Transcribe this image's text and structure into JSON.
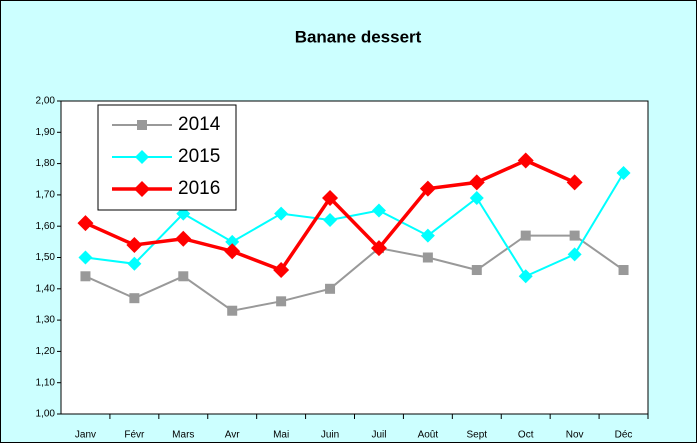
{
  "chart_data": {
    "type": "line",
    "title": "Banane dessert",
    "categories": [
      "Janv",
      "Févr",
      "Mars",
      "Avr",
      "Mai",
      "Juin",
      "Juil",
      "Août",
      "Sept",
      "Oct",
      "Nov",
      "Déc"
    ],
    "series": [
      {
        "name": "2014",
        "color": "#999999",
        "marker": "square",
        "values": [
          1.44,
          1.37,
          1.44,
          1.33,
          1.36,
          1.4,
          1.53,
          1.5,
          1.46,
          1.57,
          1.57,
          1.46
        ]
      },
      {
        "name": "2015",
        "color": "#00ffff",
        "marker": "diamond",
        "values": [
          1.5,
          1.48,
          1.64,
          1.55,
          1.64,
          1.62,
          1.65,
          1.57,
          1.69,
          1.44,
          1.51,
          1.77
        ]
      },
      {
        "name": "2016",
        "color": "#ff0000",
        "marker": "diamond",
        "values": [
          1.61,
          1.54,
          1.56,
          1.52,
          1.46,
          1.69,
          1.53,
          1.72,
          1.74,
          1.81,
          1.74,
          null
        ]
      }
    ],
    "ylim": [
      1,
      2
    ],
    "yticks": [
      {
        "value": 1,
        "label": "1,00"
      },
      {
        "value": 1.1,
        "label": "1,10"
      },
      {
        "value": 1.2,
        "label": "1,20"
      },
      {
        "value": 1.3,
        "label": "1,30"
      },
      {
        "value": 1.4,
        "label": "1,40"
      },
      {
        "value": 1.5,
        "label": "1,50"
      },
      {
        "value": 1.6,
        "label": "1,60"
      },
      {
        "value": 1.7,
        "label": "1,70"
      },
      {
        "value": 1.8,
        "label": "1,80"
      },
      {
        "value": 1.9,
        "label": "1,90"
      },
      {
        "value": 2,
        "label": "2,00"
      }
    ],
    "grid": false,
    "legend": "top-left"
  }
}
